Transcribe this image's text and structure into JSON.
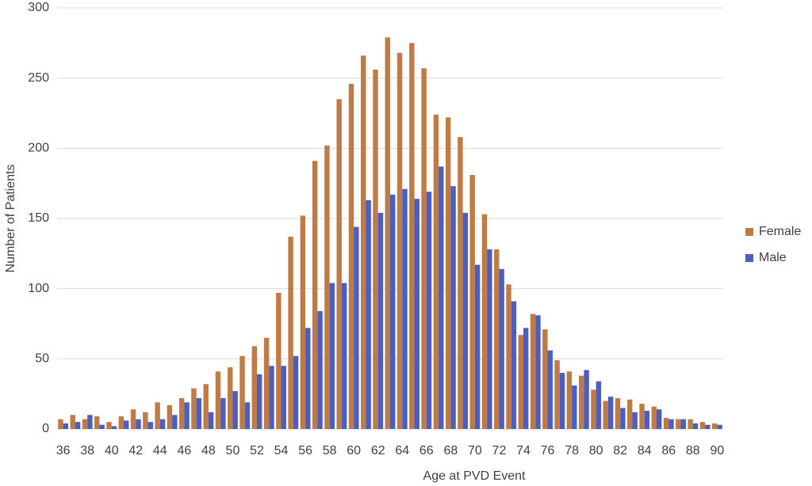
{
  "chart_data": {
    "type": "bar",
    "x_label": "Age at PVD Event",
    "y_label": "Number of Patients",
    "categories": [
      36,
      null,
      38,
      null,
      40,
      null,
      42,
      null,
      44,
      null,
      46,
      null,
      48,
      null,
      50,
      null,
      52,
      null,
      54,
      null,
      56,
      null,
      58,
      null,
      60,
      null,
      62,
      null,
      64,
      null,
      66,
      null,
      68,
      null,
      70,
      null,
      72,
      null,
      74,
      null,
      76,
      null,
      78,
      null,
      80,
      null,
      82,
      null,
      84,
      null,
      86,
      null,
      88,
      null,
      90
    ],
    "series": [
      {
        "name": "Female",
        "color": "#c07a45",
        "values": [
          7,
          10,
          7,
          9,
          5,
          9,
          14,
          12,
          19,
          17,
          22,
          29,
          32,
          41,
          44,
          52,
          59,
          65,
          97,
          137,
          152,
          191,
          202,
          235,
          246,
          266,
          256,
          279,
          268,
          275,
          257,
          224,
          222,
          208,
          181,
          153,
          128,
          103,
          67,
          82,
          71,
          49,
          41,
          38,
          28,
          20,
          22,
          21,
          18,
          16,
          8,
          7,
          7,
          5,
          4
        ]
      },
      {
        "name": "Male",
        "color": "#4a5fbf",
        "values": [
          4,
          5,
          10,
          3,
          2,
          6,
          7,
          5,
          7,
          10,
          19,
          22,
          12,
          22,
          27,
          19,
          39,
          45,
          45,
          52,
          72,
          84,
          104,
          104,
          144,
          163,
          154,
          167,
          171,
          164,
          169,
          187,
          173,
          154,
          117,
          128,
          114,
          91,
          72,
          81,
          56,
          40,
          31,
          42,
          34,
          23,
          15,
          12,
          13,
          14,
          7,
          7,
          4,
          3,
          3
        ]
      }
    ],
    "ylim": [
      0,
      300
    ],
    "yticks": [
      0,
      50,
      100,
      150,
      200,
      250,
      300
    ],
    "grid": true,
    "legend": "right"
  }
}
